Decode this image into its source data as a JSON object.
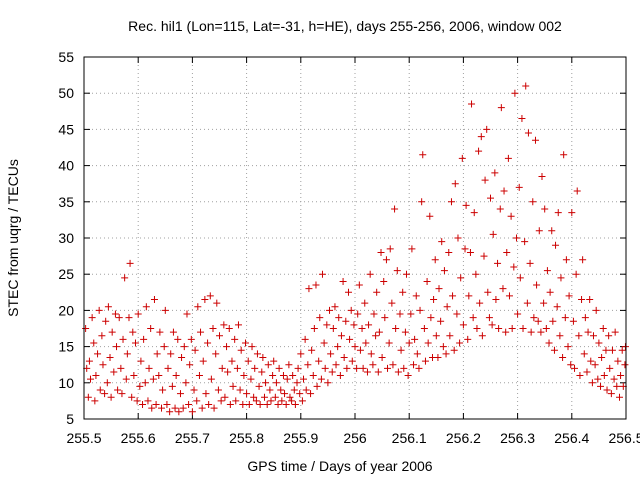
{
  "chart_data": {
    "type": "scatter",
    "title": "Rec. hil1 (Lon=115, Lat=-31, h=HE), days 255-256, 2006, window 002",
    "xlabel": "GPS time / Days of year 2006",
    "ylabel": "STEC from uqrg / TECUs",
    "xlim": [
      255.5,
      256.5
    ],
    "ylim": [
      5,
      55
    ],
    "x_ticks": [
      255.5,
      255.6,
      255.7,
      255.8,
      255.9,
      256.0,
      256.1,
      256.2,
      256.3,
      256.4,
      256.5
    ],
    "x_tick_labels": [
      "255.5",
      "255.6",
      "255.7",
      "255.8",
      "255.9",
      "256",
      "256.1",
      "256.2",
      "256.3",
      "256.4",
      "256.5"
    ],
    "y_ticks": [
      5,
      10,
      15,
      20,
      25,
      30,
      35,
      40,
      45,
      50,
      55
    ],
    "y_tick_labels": [
      "5",
      "10",
      "15",
      "20",
      "25",
      "30",
      "35",
      "40",
      "45",
      "50",
      "55"
    ],
    "grid": true,
    "marker": "plus",
    "color": "#cc0000",
    "points": [
      [
        255.503,
        17.5
      ],
      [
        255.505,
        12.0
      ],
      [
        255.508,
        8.0
      ],
      [
        255.51,
        13.0
      ],
      [
        255.512,
        10.5
      ],
      [
        255.515,
        19.0
      ],
      [
        255.518,
        15.5
      ],
      [
        255.52,
        7.5
      ],
      [
        255.522,
        11.0
      ],
      [
        255.525,
        14.0
      ],
      [
        255.528,
        20.0
      ],
      [
        255.53,
        9.0
      ],
      [
        255.533,
        16.5
      ],
      [
        255.535,
        12.5
      ],
      [
        255.538,
        8.5
      ],
      [
        255.54,
        18.5
      ],
      [
        255.543,
        10.0
      ],
      [
        255.545,
        20.5
      ],
      [
        255.548,
        13.5
      ],
      [
        255.55,
        8.0
      ],
      [
        255.552,
        17.0
      ],
      [
        255.555,
        11.5
      ],
      [
        255.558,
        19.5
      ],
      [
        255.56,
        15.0
      ],
      [
        255.562,
        9.0
      ],
      [
        255.565,
        19.0
      ],
      [
        255.568,
        12.0
      ],
      [
        255.57,
        8.5
      ],
      [
        255.572,
        16.0
      ],
      [
        255.575,
        24.5
      ],
      [
        255.578,
        10.5
      ],
      [
        255.58,
        14.0
      ],
      [
        255.583,
        19.0
      ],
      [
        255.585,
        26.5
      ],
      [
        255.588,
        8.0
      ],
      [
        255.59,
        17.0
      ],
      [
        255.592,
        11.0
      ],
      [
        255.595,
        15.5
      ],
      [
        255.598,
        7.5
      ],
      [
        255.6,
        19.5
      ],
      [
        255.603,
        9.5
      ],
      [
        255.605,
        13.0
      ],
      [
        255.608,
        7.0
      ],
      [
        255.61,
        16.0
      ],
      [
        255.613,
        10.0
      ],
      [
        255.615,
        20.5
      ],
      [
        255.618,
        7.5
      ],
      [
        255.62,
        12.0
      ],
      [
        255.623,
        17.5
      ],
      [
        255.625,
        6.5
      ],
      [
        255.628,
        10.5
      ],
      [
        255.63,
        21.5
      ],
      [
        255.633,
        7.0
      ],
      [
        255.635,
        14.0
      ],
      [
        255.638,
        11.0
      ],
      [
        255.64,
        17.0
      ],
      [
        255.643,
        6.5
      ],
      [
        255.645,
        9.0
      ],
      [
        255.648,
        15.0
      ],
      [
        255.65,
        20.0
      ],
      [
        255.653,
        7.0
      ],
      [
        255.655,
        12.0
      ],
      [
        255.658,
        6.0
      ],
      [
        255.66,
        14.0
      ],
      [
        255.663,
        9.5
      ],
      [
        255.665,
        17.0
      ],
      [
        255.668,
        6.5
      ],
      [
        255.67,
        11.0
      ],
      [
        255.673,
        16.0
      ],
      [
        255.675,
        6.0
      ],
      [
        255.678,
        8.5
      ],
      [
        255.68,
        13.5
      ],
      [
        255.683,
        6.5
      ],
      [
        255.685,
        15.0
      ],
      [
        255.688,
        10.0
      ],
      [
        255.69,
        19.5
      ],
      [
        255.693,
        7.0
      ],
      [
        255.695,
        12.5
      ],
      [
        255.698,
        16.0
      ],
      [
        255.7,
        6.0
      ],
      [
        255.703,
        9.0
      ],
      [
        255.705,
        14.5
      ],
      [
        255.708,
        7.5
      ],
      [
        255.71,
        20.5
      ],
      [
        255.713,
        11.0
      ],
      [
        255.715,
        17.0
      ],
      [
        255.718,
        6.5
      ],
      [
        255.72,
        13.0
      ],
      [
        255.723,
        21.5
      ],
      [
        255.725,
        8.5
      ],
      [
        255.728,
        15.5
      ],
      [
        255.73,
        7.0
      ],
      [
        255.733,
        22.0
      ],
      [
        255.735,
        10.5
      ],
      [
        255.738,
        17.5
      ],
      [
        255.74,
        6.5
      ],
      [
        255.743,
        14.0
      ],
      [
        255.745,
        21.0
      ],
      [
        255.748,
        9.0
      ],
      [
        255.75,
        16.5
      ],
      [
        255.753,
        7.5
      ],
      [
        255.755,
        12.0
      ],
      [
        255.758,
        18.0
      ],
      [
        255.76,
        8.0
      ],
      [
        255.763,
        15.0
      ],
      [
        255.765,
        11.5
      ],
      [
        255.768,
        17.5
      ],
      [
        255.77,
        7.0
      ],
      [
        255.773,
        13.0
      ],
      [
        255.775,
        9.5
      ],
      [
        255.778,
        16.0
      ],
      [
        255.78,
        7.5
      ],
      [
        255.783,
        12.0
      ],
      [
        255.785,
        18.0
      ],
      [
        255.788,
        9.0
      ],
      [
        255.79,
        14.5
      ],
      [
        255.793,
        7.0
      ],
      [
        255.795,
        11.0
      ],
      [
        255.798,
        15.5
      ],
      [
        255.8,
        8.5
      ],
      [
        255.803,
        13.0
      ],
      [
        255.805,
        7.0
      ],
      [
        255.808,
        10.5
      ],
      [
        255.81,
        15.0
      ],
      [
        255.813,
        8.0
      ],
      [
        255.815,
        12.0
      ],
      [
        255.818,
        7.5
      ],
      [
        255.82,
        14.0
      ],
      [
        255.823,
        9.5
      ],
      [
        255.825,
        7.0
      ],
      [
        255.828,
        11.5
      ],
      [
        255.83,
        13.5
      ],
      [
        255.833,
        8.0
      ],
      [
        255.835,
        10.0
      ],
      [
        255.838,
        7.0
      ],
      [
        255.84,
        12.5
      ],
      [
        255.843,
        9.0
      ],
      [
        255.845,
        7.5
      ],
      [
        255.848,
        11.0
      ],
      [
        255.85,
        13.0
      ],
      [
        255.853,
        8.0
      ],
      [
        255.855,
        10.0
      ],
      [
        255.858,
        7.0
      ],
      [
        255.86,
        12.0
      ],
      [
        255.863,
        9.0
      ],
      [
        255.865,
        7.5
      ],
      [
        255.868,
        11.0
      ],
      [
        255.87,
        8.5
      ],
      [
        255.873,
        7.0
      ],
      [
        255.875,
        10.5
      ],
      [
        255.878,
        12.5
      ],
      [
        255.88,
        8.0
      ],
      [
        255.883,
        7.5
      ],
      [
        255.885,
        11.0
      ],
      [
        255.888,
        9.0
      ],
      [
        255.89,
        7.0
      ],
      [
        255.893,
        10.0
      ],
      [
        255.895,
        12.0
      ],
      [
        255.898,
        8.5
      ],
      [
        255.9,
        14.0
      ],
      [
        255.903,
        7.5
      ],
      [
        255.905,
        10.5
      ],
      [
        255.908,
        16.0
      ],
      [
        255.91,
        9.0
      ],
      [
        255.913,
        12.5
      ],
      [
        255.915,
        23.0
      ],
      [
        255.918,
        8.5
      ],
      [
        255.92,
        14.5
      ],
      [
        255.923,
        11.0
      ],
      [
        255.925,
        17.5
      ],
      [
        255.928,
        23.5
      ],
      [
        255.93,
        9.5
      ],
      [
        255.933,
        13.0
      ],
      [
        255.935,
        19.0
      ],
      [
        255.938,
        10.5
      ],
      [
        255.94,
        25.0
      ],
      [
        255.943,
        15.5
      ],
      [
        255.945,
        12.0
      ],
      [
        255.948,
        18.0
      ],
      [
        255.95,
        10.0
      ],
      [
        255.953,
        20.0
      ],
      [
        255.955,
        14.0
      ],
      [
        255.958,
        11.5
      ],
      [
        255.96,
        17.5
      ],
      [
        255.963,
        20.5
      ],
      [
        255.965,
        12.5
      ],
      [
        255.968,
        15.0
      ],
      [
        255.97,
        19.0
      ],
      [
        255.973,
        11.0
      ],
      [
        255.975,
        16.5
      ],
      [
        255.978,
        24.0
      ],
      [
        255.98,
        13.5
      ],
      [
        255.983,
        18.5
      ],
      [
        255.985,
        12.0
      ],
      [
        255.988,
        22.5
      ],
      [
        255.99,
        16.0
      ],
      [
        255.993,
        20.0
      ],
      [
        255.995,
        13.0
      ],
      [
        255.998,
        18.0
      ],
      [
        256.0,
        15.0
      ],
      [
        256.003,
        12.0
      ],
      [
        256.005,
        19.5
      ],
      [
        256.008,
        23.5
      ],
      [
        256.01,
        14.5
      ],
      [
        256.013,
        17.5
      ],
      [
        256.015,
        12.0
      ],
      [
        256.018,
        21.0
      ],
      [
        256.02,
        15.5
      ],
      [
        256.023,
        11.5
      ],
      [
        256.025,
        18.0
      ],
      [
        256.028,
        25.0
      ],
      [
        256.03,
        14.0
      ],
      [
        256.033,
        12.5
      ],
      [
        256.035,
        19.5
      ],
      [
        256.038,
        16.5
      ],
      [
        256.04,
        22.5
      ],
      [
        256.043,
        11.5
      ],
      [
        256.045,
        17.0
      ],
      [
        256.048,
        28.0
      ],
      [
        256.05,
        13.5
      ],
      [
        256.053,
        24.0
      ],
      [
        256.055,
        19.0
      ],
      [
        256.058,
        27.0
      ],
      [
        256.06,
        12.0
      ],
      [
        256.063,
        15.5
      ],
      [
        256.065,
        28.5
      ],
      [
        256.068,
        21.0
      ],
      [
        256.07,
        12.5
      ],
      [
        256.073,
        34.0
      ],
      [
        256.075,
        17.5
      ],
      [
        256.078,
        25.5
      ],
      [
        256.08,
        11.5
      ],
      [
        256.083,
        19.5
      ],
      [
        256.085,
        14.5
      ],
      [
        256.088,
        22.5
      ],
      [
        256.09,
        12.0
      ],
      [
        256.093,
        17.0
      ],
      [
        256.095,
        25.0
      ],
      [
        256.098,
        11.0
      ],
      [
        256.1,
        15.5
      ],
      [
        256.103,
        19.5
      ],
      [
        256.105,
        28.5
      ],
      [
        256.108,
        12.5
      ],
      [
        256.11,
        16.0
      ],
      [
        256.113,
        22.0
      ],
      [
        256.115,
        14.0
      ],
      [
        256.118,
        12.0
      ],
      [
        256.12,
        20.0
      ],
      [
        256.123,
        35.0
      ],
      [
        256.125,
        41.5
      ],
      [
        256.128,
        17.5
      ],
      [
        256.13,
        13.0
      ],
      [
        256.133,
        24.0
      ],
      [
        256.135,
        15.5
      ],
      [
        256.138,
        33.0
      ],
      [
        256.14,
        19.0
      ],
      [
        256.143,
        13.5
      ],
      [
        256.145,
        21.5
      ],
      [
        256.148,
        27.0
      ],
      [
        256.15,
        16.5
      ],
      [
        256.153,
        13.5
      ],
      [
        256.155,
        23.0
      ],
      [
        256.158,
        18.5
      ],
      [
        256.16,
        29.5
      ],
      [
        256.163,
        15.0
      ],
      [
        256.165,
        25.5
      ],
      [
        256.168,
        14.0
      ],
      [
        256.17,
        20.5
      ],
      [
        256.173,
        28.0
      ],
      [
        256.175,
        16.5
      ],
      [
        256.178,
        35.0
      ],
      [
        256.18,
        22.0
      ],
      [
        256.183,
        14.5
      ],
      [
        256.185,
        37.5
      ],
      [
        256.188,
        19.5
      ],
      [
        256.19,
        30.0
      ],
      [
        256.193,
        15.5
      ],
      [
        256.195,
        24.5
      ],
      [
        256.198,
        41.0
      ],
      [
        256.2,
        18.0
      ],
      [
        256.203,
        28.5
      ],
      [
        256.205,
        34.5
      ],
      [
        256.208,
        16.0
      ],
      [
        256.21,
        22.0
      ],
      [
        256.213,
        28.0
      ],
      [
        256.215,
        48.5
      ],
      [
        256.218,
        19.0
      ],
      [
        256.22,
        33.5
      ],
      [
        256.223,
        25.0
      ],
      [
        256.225,
        17.5
      ],
      [
        256.228,
        42.0
      ],
      [
        256.23,
        21.0
      ],
      [
        256.233,
        44.0
      ],
      [
        256.235,
        16.5
      ],
      [
        256.238,
        27.5
      ],
      [
        256.24,
        38.0
      ],
      [
        256.243,
        45.0
      ],
      [
        256.245,
        22.5
      ],
      [
        256.248,
        19.0
      ],
      [
        256.25,
        35.5
      ],
      [
        256.253,
        18.0
      ],
      [
        256.255,
        30.5
      ],
      [
        256.258,
        39.0
      ],
      [
        256.26,
        21.5
      ],
      [
        256.263,
        26.5
      ],
      [
        256.265,
        17.5
      ],
      [
        256.268,
        34.0
      ],
      [
        256.27,
        48.0
      ],
      [
        256.273,
        23.0
      ],
      [
        256.275,
        36.5
      ],
      [
        256.278,
        17.0
      ],
      [
        256.28,
        28.0
      ],
      [
        256.283,
        41.0
      ],
      [
        256.285,
        22.0
      ],
      [
        256.288,
        33.0
      ],
      [
        256.29,
        17.5
      ],
      [
        256.293,
        26.0
      ],
      [
        256.295,
        50.0
      ],
      [
        256.298,
        30.0
      ],
      [
        256.3,
        19.5
      ],
      [
        256.303,
        37.0
      ],
      [
        256.305,
        24.5
      ],
      [
        256.308,
        46.5
      ],
      [
        256.31,
        17.5
      ],
      [
        256.313,
        29.5
      ],
      [
        256.315,
        51.0
      ],
      [
        256.318,
        21.0
      ],
      [
        256.32,
        44.5
      ],
      [
        256.323,
        26.5
      ],
      [
        256.325,
        17.0
      ],
      [
        256.328,
        35.0
      ],
      [
        256.33,
        19.0
      ],
      [
        256.333,
        43.5
      ],
      [
        256.335,
        23.5
      ],
      [
        256.338,
        18.5
      ],
      [
        256.34,
        31.0
      ],
      [
        256.343,
        17.0
      ],
      [
        256.345,
        38.5
      ],
      [
        256.348,
        21.0
      ],
      [
        256.35,
        34.0
      ],
      [
        256.353,
        17.5
      ],
      [
        256.355,
        25.5
      ],
      [
        256.358,
        15.5
      ],
      [
        256.36,
        22.5
      ],
      [
        256.363,
        31.0
      ],
      [
        256.365,
        18.5
      ],
      [
        256.368,
        14.5
      ],
      [
        256.37,
        29.0
      ],
      [
        256.373,
        20.5
      ],
      [
        256.375,
        33.5
      ],
      [
        256.378,
        16.5
      ],
      [
        256.38,
        24.5
      ],
      [
        256.383,
        13.5
      ],
      [
        256.385,
        41.5
      ],
      [
        256.388,
        19.0
      ],
      [
        256.39,
        27.0
      ],
      [
        256.393,
        15.0
      ],
      [
        256.395,
        22.0
      ],
      [
        256.398,
        12.5
      ],
      [
        256.4,
        33.5
      ],
      [
        256.403,
        18.5
      ],
      [
        256.405,
        12.0
      ],
      [
        256.408,
        25.0
      ],
      [
        256.41,
        36.5
      ],
      [
        256.413,
        16.5
      ],
      [
        256.415,
        11.0
      ],
      [
        256.418,
        21.5
      ],
      [
        256.42,
        27.0
      ],
      [
        256.423,
        14.0
      ],
      [
        256.425,
        19.0
      ],
      [
        256.428,
        11.5
      ],
      [
        256.43,
        17.0
      ],
      [
        256.433,
        21.5
      ],
      [
        256.435,
        13.0
      ],
      [
        256.438,
        10.0
      ],
      [
        256.44,
        16.5
      ],
      [
        256.443,
        12.5
      ],
      [
        256.445,
        20.0
      ],
      [
        256.448,
        10.5
      ],
      [
        256.45,
        15.5
      ],
      [
        256.453,
        9.5
      ],
      [
        256.455,
        13.5
      ],
      [
        256.458,
        17.5
      ],
      [
        256.46,
        11.0
      ],
      [
        256.463,
        14.5
      ],
      [
        256.465,
        9.0
      ],
      [
        256.468,
        16.5
      ],
      [
        256.47,
        12.0
      ],
      [
        256.473,
        8.5
      ],
      [
        256.475,
        14.5
      ],
      [
        256.478,
        10.5
      ],
      [
        256.48,
        17.0
      ],
      [
        256.483,
        9.5
      ],
      [
        256.485,
        13.0
      ],
      [
        256.488,
        8.0
      ],
      [
        256.49,
        11.0
      ],
      [
        256.493,
        14.5
      ],
      [
        256.495,
        9.5
      ],
      [
        256.498,
        12.5
      ],
      [
        256.499,
        15.0
      ]
    ]
  }
}
